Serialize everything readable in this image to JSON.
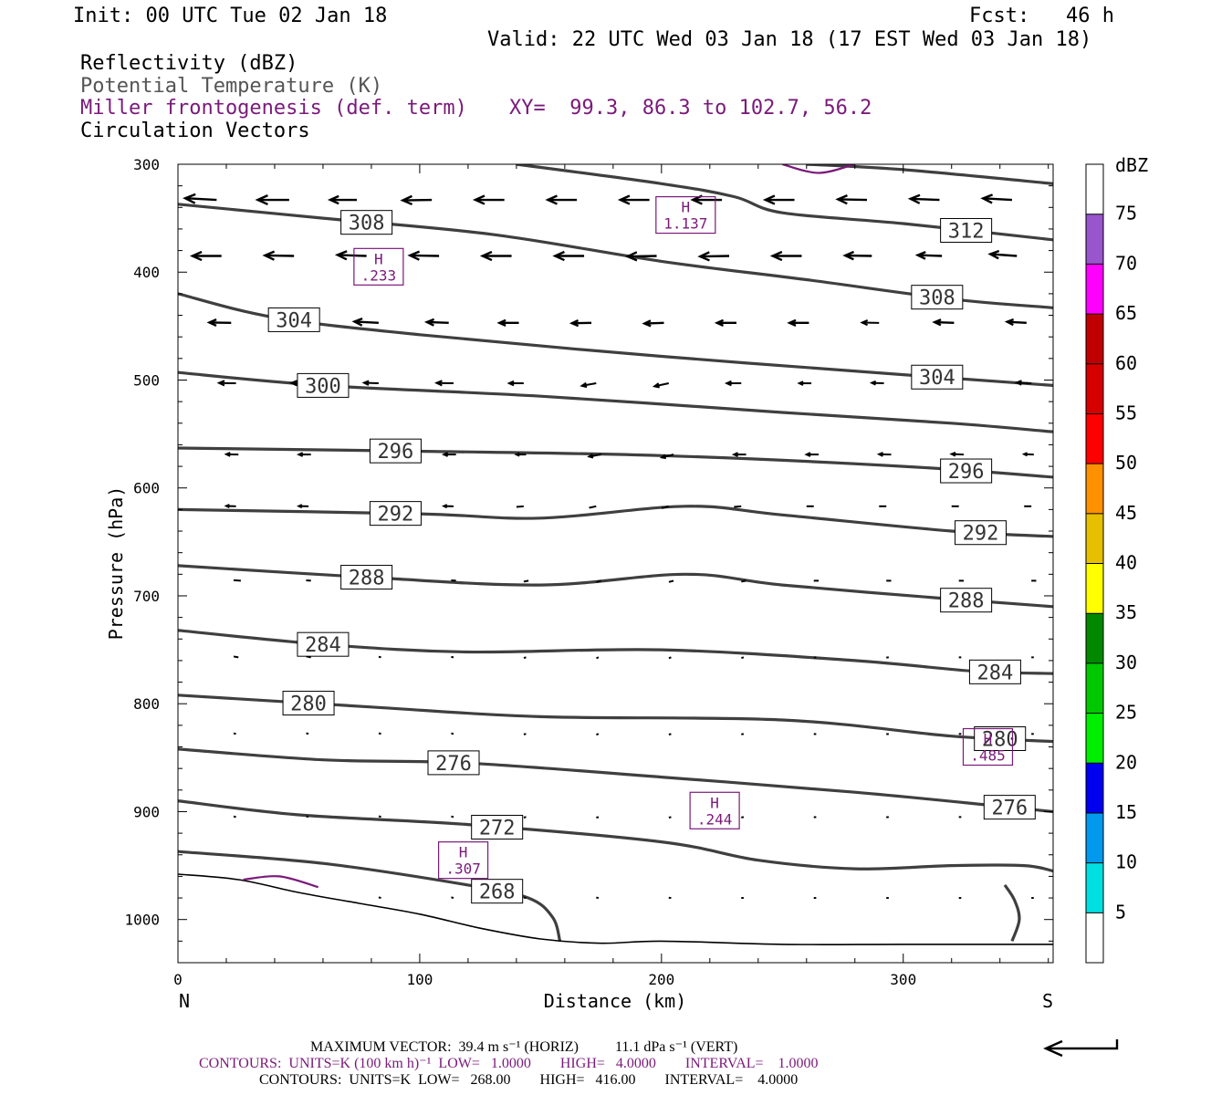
{
  "header": {
    "init": "Init: 00 UTC Tue 02 Jan 18",
    "fcst": "Fcst:   46 h",
    "valid": "Valid: 22 UTC Wed 03 Jan 18 (17 EST Wed 03 Jan 18)",
    "fields": [
      {
        "label": "Reflectivity (dBZ)",
        "color": "#000000"
      },
      {
        "label": "Potential Temperature (K)",
        "color": "#555555"
      },
      {
        "label": "Miller frontogenesis (def. term)",
        "color": "#7a1a7a"
      },
      {
        "label": "Circulation Vectors",
        "color": "#000000"
      }
    ],
    "xy": "XY=  99.3, 86.3 to 102.7, 56.2"
  },
  "chart_data": {
    "type": "line",
    "xlabel": "Distance (km)",
    "ylabel": "Pressure (hPa)",
    "xlim": [
      0,
      362
    ],
    "ylim": [
      1040,
      300
    ],
    "x_ticks": [
      0,
      100,
      200,
      300
    ],
    "y_ticks": [
      300,
      400,
      500,
      600,
      700,
      800,
      900,
      1000
    ],
    "x_end_labels": {
      "left": "N",
      "right": "S"
    },
    "theta_color": "#3f3f3f",
    "fronto_color": "#7a1a7a",
    "isentropes": [
      {
        "name": "308",
        "x": [
          0,
          60,
          130,
          200,
          260,
          320,
          362
        ],
        "y": [
          337,
          350,
          365,
          390,
          407,
          425,
          433
        ],
        "labels": [
          {
            "x": 78,
            "text": "308"
          },
          {
            "x": 314,
            "text": "308"
          }
        ]
      },
      {
        "name": "312",
        "x": [
          140,
          200,
          230,
          250,
          300,
          362
        ],
        "y": [
          300,
          318,
          330,
          345,
          355,
          370
        ],
        "labels": [
          {
            "x": 326,
            "text": "312"
          }
        ]
      },
      {
        "name": "316",
        "x": [
          260,
          300,
          362
        ],
        "y": [
          300,
          305,
          318
        ],
        "labels": []
      },
      {
        "name": "304",
        "x": [
          0,
          40,
          100,
          200,
          300,
          362
        ],
        "y": [
          420,
          442,
          458,
          478,
          495,
          505
        ],
        "labels": [
          {
            "x": 48,
            "text": "304"
          },
          {
            "x": 314,
            "text": "304"
          }
        ]
      },
      {
        "name": "300",
        "x": [
          0,
          60,
          150,
          250,
          320,
          362
        ],
        "y": [
          493,
          505,
          515,
          530,
          540,
          548
        ],
        "labels": [
          {
            "x": 60,
            "text": "300"
          }
        ]
      },
      {
        "name": "296",
        "x": [
          0,
          100,
          200,
          300,
          362
        ],
        "y": [
          563,
          566,
          570,
          580,
          590
        ],
        "labels": [
          {
            "x": 90,
            "text": "296"
          },
          {
            "x": 326,
            "text": "296"
          }
        ]
      },
      {
        "name": "292",
        "x": [
          0,
          100,
          150,
          210,
          250,
          320,
          362
        ],
        "y": [
          620,
          624,
          628,
          617,
          625,
          640,
          645
        ],
        "labels": [
          {
            "x": 90,
            "text": "292"
          },
          {
            "x": 332,
            "text": "292"
          }
        ]
      },
      {
        "name": "288",
        "x": [
          0,
          80,
          150,
          210,
          250,
          320,
          362
        ],
        "y": [
          672,
          683,
          690,
          680,
          690,
          703,
          710
        ],
        "labels": [
          {
            "x": 78,
            "text": "288"
          },
          {
            "x": 326,
            "text": "288"
          }
        ]
      },
      {
        "name": "284",
        "x": [
          0,
          60,
          120,
          200,
          280,
          330,
          362
        ],
        "y": [
          732,
          745,
          752,
          750,
          760,
          770,
          772
        ],
        "labels": [
          {
            "x": 60,
            "text": "284"
          },
          {
            "x": 338,
            "text": "284"
          }
        ]
      },
      {
        "name": "280",
        "x": [
          0,
          80,
          150,
          250,
          320,
          362
        ],
        "y": [
          792,
          803,
          812,
          815,
          830,
          835
        ],
        "labels": [
          {
            "x": 54,
            "text": "280"
          },
          {
            "x": 340,
            "text": "280"
          }
        ]
      },
      {
        "name": "276",
        "x": [
          0,
          60,
          120,
          200,
          280,
          340,
          362
        ],
        "y": [
          842,
          852,
          855,
          868,
          882,
          895,
          900
        ],
        "labels": [
          {
            "x": 114,
            "text": "276"
          },
          {
            "x": 344,
            "text": "276"
          }
        ]
      },
      {
        "name": "272",
        "x": [
          0,
          50,
          120,
          200,
          240,
          280,
          320,
          350,
          362
        ],
        "y": [
          890,
          903,
          912,
          928,
          945,
          953,
          950,
          950,
          955
        ],
        "labels": [
          {
            "x": 132,
            "text": "272"
          }
        ]
      },
      {
        "name": "268",
        "x": [
          0,
          60,
          120,
          145,
          155,
          158
        ],
        "y": [
          937,
          948,
          968,
          980,
          998,
          1020
        ],
        "labels": [
          {
            "x": 132,
            "text": "268"
          }
        ]
      },
      {
        "name": "268b",
        "x": [
          345,
          348,
          346,
          342
        ],
        "y": [
          1020,
          1000,
          982,
          968
        ],
        "labels": []
      }
    ],
    "terrain": {
      "x": [
        0,
        25,
        50,
        75,
        100,
        125,
        150,
        175,
        200,
        250,
        300,
        362
      ],
      "y": [
        958,
        963,
        975,
        985,
        995,
        1008,
        1018,
        1022,
        1020,
        1023,
        1023,
        1023
      ]
    },
    "fronto_contours": [
      {
        "x": [
          250,
          265,
          280
        ],
        "y": [
          300,
          308,
          300
        ]
      },
      {
        "x": [
          27,
          42,
          58
        ],
        "y": [
          963,
          960,
          970
        ]
      }
    ],
    "fronto_maxima": [
      {
        "x": 210,
        "y": 347,
        "value": "1.137"
      },
      {
        "x": 83,
        "y": 395,
        "value": ".233"
      },
      {
        "x": 335,
        "y": 840,
        "value": ".485"
      },
      {
        "x": 222,
        "y": 899,
        "value": ".244"
      },
      {
        "x": 118,
        "y": 945,
        "value": ".307"
      }
    ],
    "high_letter": "H",
    "vectors": [
      {
        "level": 333,
        "x": [
          3,
          33,
          63,
          93,
          123,
          153,
          183,
          213,
          243,
          273,
          303,
          333
        ],
        "len": [
          13,
          13,
          11,
          12,
          12,
          12,
          12,
          12,
          12,
          12,
          12,
          12
        ],
        "ang": [
          3,
          0,
          0,
          -1,
          0,
          0,
          0,
          0,
          0,
          1,
          2,
          3
        ]
      },
      {
        "level": 385,
        "x": [
          6,
          36,
          66,
          96,
          126,
          156,
          186,
          216,
          246,
          276,
          306,
          336
        ],
        "len": [
          12,
          12,
          12,
          12,
          12,
          12,
          12,
          12,
          12,
          11,
          10,
          11
        ],
        "ang": [
          0,
          1,
          2,
          1,
          0,
          0,
          -1,
          -1,
          0,
          1,
          2,
          4
        ]
      },
      {
        "level": 447,
        "x": [
          13,
          43,
          73,
          103,
          133,
          163,
          193,
          223,
          253,
          283,
          313,
          343
        ],
        "len": [
          9,
          10,
          10,
          9,
          8,
          8,
          8,
          8,
          8,
          7,
          8,
          8
        ],
        "ang": [
          1,
          2,
          3,
          2,
          0,
          -1,
          -2,
          0,
          0,
          1,
          2,
          3
        ]
      },
      {
        "level": 503,
        "x": [
          17,
          47,
          77,
          107,
          137,
          167,
          197,
          227,
          257,
          287,
          317,
          347
        ],
        "len": [
          7,
          7,
          6,
          7,
          6,
          6,
          6,
          6,
          5,
          5,
          6,
          6
        ],
        "ang": [
          1,
          1,
          2,
          1,
          0,
          -10,
          -12,
          0,
          0,
          2,
          2,
          3
        ]
      },
      {
        "level": 569,
        "x": [
          20,
          50,
          80,
          110,
          140,
          170,
          200,
          230,
          260,
          290,
          320,
          350
        ],
        "len": [
          5,
          5,
          5,
          5,
          4,
          5,
          5,
          5,
          5,
          5,
          5,
          4
        ],
        "ang": [
          1,
          0,
          1,
          0,
          0,
          -10,
          -14,
          0,
          0,
          1,
          2,
          2
        ]
      },
      {
        "level": 617,
        "x": [
          20,
          50,
          80,
          110,
          140,
          170,
          200,
          230,
          260,
          290,
          320,
          350
        ],
        "len": [
          4,
          4,
          4,
          4,
          3,
          3,
          3,
          3,
          3,
          3,
          3,
          3
        ],
        "ang": [
          2,
          1,
          2,
          1,
          -5,
          -12,
          -15,
          -5,
          0,
          0,
          0,
          0
        ]
      },
      {
        "level": 686,
        "x": [
          23,
          53,
          83,
          113,
          143,
          173,
          203,
          233,
          263,
          293,
          323,
          353
        ],
        "len": [
          3,
          2,
          2,
          2,
          2,
          2,
          2,
          2,
          2,
          2,
          2,
          2
        ],
        "ang": [
          4,
          5,
          6,
          5,
          -10,
          -15,
          -15,
          -10,
          0,
          0,
          0,
          0
        ]
      },
      {
        "level": 757,
        "x": [
          23,
          53,
          83,
          113,
          143,
          173,
          203,
          233,
          263,
          293,
          323,
          353
        ],
        "len": [
          2,
          2,
          1,
          1,
          1,
          1,
          1,
          1,
          1,
          1,
          1,
          1
        ],
        "ang": [
          10,
          12,
          15,
          10,
          -15,
          -20,
          -20,
          -15,
          -5,
          -5,
          0,
          0
        ]
      },
      {
        "level": 828,
        "x": [
          23,
          53,
          83,
          113,
          143,
          173,
          203,
          233,
          263,
          293,
          323,
          353
        ],
        "len": [
          1,
          1,
          1,
          1,
          1,
          1,
          1,
          1,
          1,
          1,
          1,
          1
        ],
        "ang": [
          15,
          20,
          20,
          15,
          -10,
          -15,
          -15,
          -10,
          -5,
          -5,
          0,
          0
        ]
      },
      {
        "level": 905,
        "x": [
          23,
          53,
          83,
          113,
          143,
          173,
          203,
          233,
          263,
          293,
          323,
          353
        ],
        "len": [
          1,
          1,
          1,
          1,
          1,
          1,
          1,
          1,
          1,
          1,
          1,
          1
        ],
        "ang": [
          15,
          20,
          20,
          15,
          -10,
          -15,
          -15,
          -10,
          -5,
          -5,
          0,
          0
        ]
      },
      {
        "level": 980,
        "x": [
          83,
          113,
          143,
          173,
          203,
          233,
          263,
          293,
          323,
          353
        ],
        "len": [
          1,
          1,
          1,
          1,
          1,
          1,
          1,
          1,
          1,
          1
        ],
        "ang": [
          15,
          15,
          10,
          10,
          5,
          0,
          0,
          0,
          0,
          0
        ]
      }
    ],
    "colorbar": {
      "title": "dBZ",
      "levels": [
        "5",
        "10",
        "15",
        "20",
        "25",
        "30",
        "35",
        "40",
        "45",
        "50",
        "55",
        "60",
        "65",
        "70",
        "75"
      ],
      "colors": [
        "#ffffff",
        "#00e0e0",
        "#0099ee",
        "#0000ee",
        "#00ee00",
        "#00c800",
        "#008800",
        "#ffff00",
        "#e6c000",
        "#ff9000",
        "#ff0000",
        "#d60000",
        "#c00000",
        "#ff00ff",
        "#9955cc",
        "#ffffff"
      ]
    },
    "max_vector_arrow": true
  },
  "footer": {
    "line1": "MAXIMUM VECTOR:  39.4 m s⁻¹ (HORIZ)          11.1 dPa s⁻¹ (VERT)",
    "line2": "CONTOURS:  UNITS=K (100 km h)⁻¹  LOW=   1.0000        HIGH=   4.0000        INTERVAL=    1.0000",
    "line3": "CONTOURS:  UNITS=K  LOW=   268.00        HIGH=   416.00        INTERVAL=    4.0000",
    "line2_color": "#7a1a7a"
  }
}
